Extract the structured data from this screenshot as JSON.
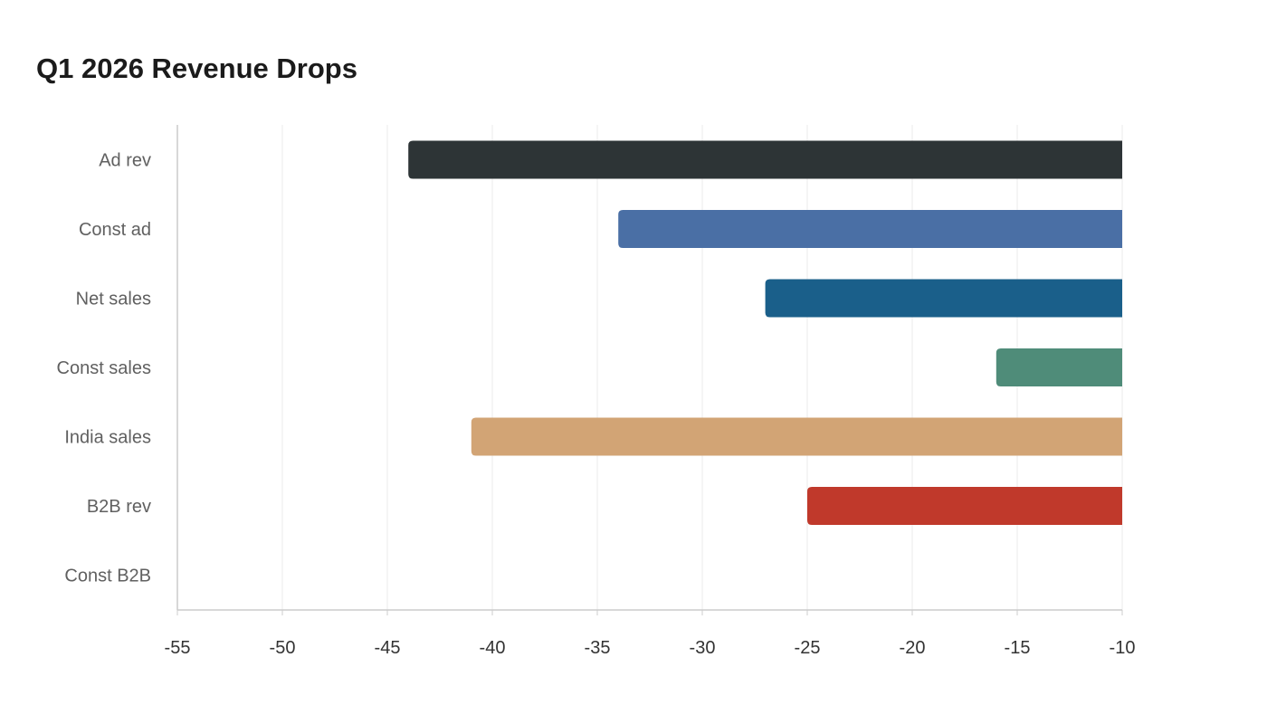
{
  "chart_data": {
    "type": "bar",
    "orientation": "horizontal",
    "title": "Q1 2026 Revenue Drops",
    "xlabel": "",
    "ylabel": "",
    "categories": [
      "Ad rev",
      "Const ad",
      "Net sales",
      "Const sales",
      "India sales",
      "B2B rev",
      "Const B2B"
    ],
    "values": [
      -44,
      -34,
      -27,
      -16,
      -41,
      -25,
      null
    ],
    "colors": [
      "#2d3436",
      "#4a6fa5",
      "#1a5f8a",
      "#4f8c79",
      "#d2a475",
      "#c0392b",
      null
    ],
    "xlim": [
      -55,
      -10
    ],
    "xticks": [
      "-55",
      "-50",
      "-45",
      "-40",
      "-35",
      "-30",
      "-25",
      "-20",
      "-15",
      "-10"
    ],
    "grid": true,
    "legend": "none"
  }
}
